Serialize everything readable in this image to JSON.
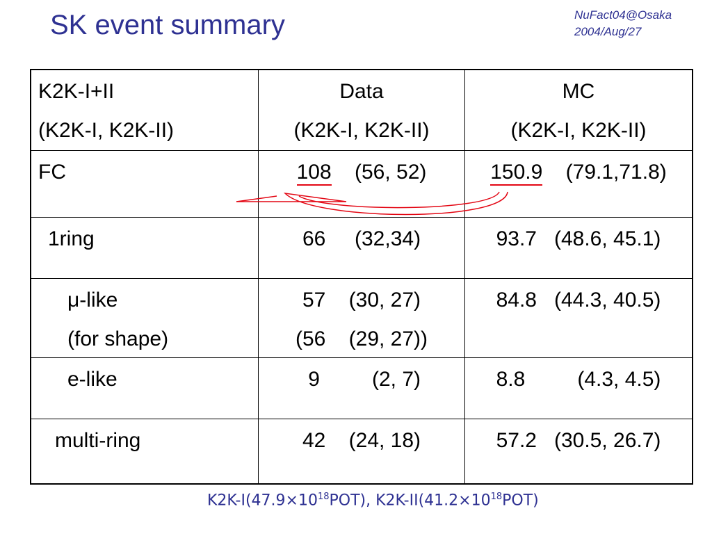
{
  "title": "SK event summary",
  "conference": {
    "line1": "NuFact04@Osaka",
    "line2": "2004/Aug/27"
  },
  "table": {
    "header": {
      "col1_line1": "K2K-I+II",
      "col1_line2": "(K2K-I, K2K-II)",
      "col2_line1": "Data",
      "col2_line2": "(K2K-I, K2K-II)",
      "col3_line1": "MC",
      "col3_line2": "(K2K-I, K2K-II)"
    },
    "rows": [
      {
        "label": "FC",
        "data_total": "108",
        "data_split": "(56, 52)",
        "mc_total": "150.9",
        "mc_split": "(79.1,71.8)"
      },
      {
        "label": "1ring",
        "data_total": "66",
        "data_split": "(32,34)",
        "mc_total": "93.7",
        "mc_split": "(48.6, 45.1)"
      },
      {
        "label": "μ-like",
        "label2": "(for shape)",
        "data_total": "57",
        "data_split": "(30, 27)",
        "data_total2": "(56",
        "data_split2": "(29, 27))",
        "mc_total": "84.8",
        "mc_split": "(44.3, 40.5)"
      },
      {
        "label": "e-like",
        "data_total": "9",
        "data_split": "(2, 7)",
        "mc_total": "8.8",
        "mc_split": "(4.3, 4.5)"
      },
      {
        "label": "multi-ring",
        "data_total": "42",
        "data_split": "(24, 18)",
        "mc_total": "57.2",
        "mc_split": "(30.5, 26.7)"
      }
    ]
  },
  "footnote": {
    "k2k1": "K2K-I(47.9×10",
    "k2k1_exp": "18",
    "k2k1_tail": "POT), ",
    "k2k2": "K2K-II(41.2×10",
    "k2k2_exp": "18",
    "k2k2_tail": "POT)"
  },
  "colors": {
    "title": "#2e3192",
    "accent": "#e30613"
  }
}
